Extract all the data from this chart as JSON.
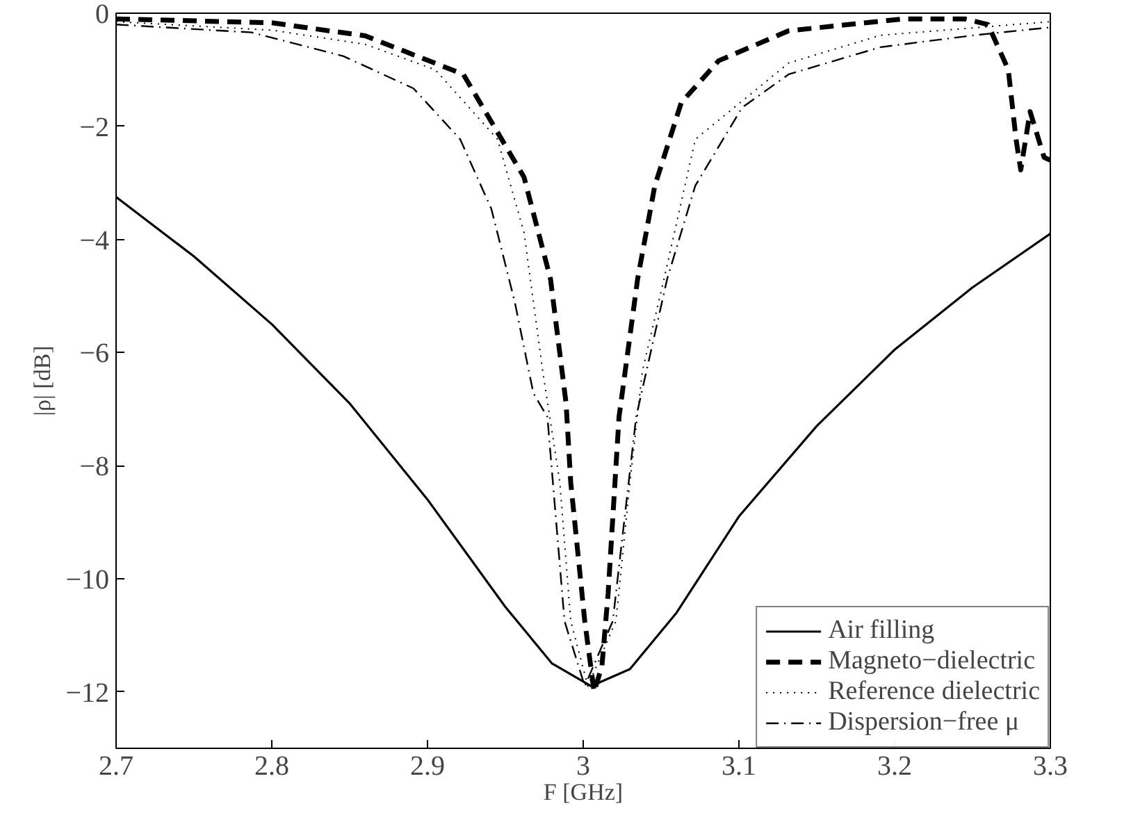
{
  "chart_data": {
    "type": "line",
    "xlabel": "F [GHz]",
    "ylabel": "|ρ| [dB]",
    "xlim": [
      2.7,
      3.3
    ],
    "ylim": [
      -13,
      0
    ],
    "xticks": [
      2.7,
      2.8,
      2.9,
      {
        "value": 3.0,
        "label": "3"
      },
      3.1,
      3.2,
      3.3
    ],
    "yticks": [
      0,
      {
        "value": -2,
        "label": "−2"
      },
      {
        "value": -4,
        "label": "−4"
      },
      {
        "value": -6,
        "label": "−6"
      },
      {
        "value": -8,
        "label": "−8"
      },
      {
        "value": -10,
        "label": "−10"
      },
      {
        "value": -12,
        "label": "−12"
      }
    ],
    "grid": false,
    "legend": "bottom right",
    "marker": "none",
    "series": [
      {
        "name": "Air filling",
        "color": "#000000",
        "line_style": "solid",
        "x": [
          2.7,
          2.75,
          2.8,
          2.85,
          2.9,
          2.95,
          2.98,
          3.005,
          3.03,
          3.06,
          3.1,
          3.15,
          3.2,
          3.25,
          3.3
        ],
        "values": [
          -3.25,
          -4.3,
          -5.5,
          -6.9,
          -8.6,
          -10.5,
          -11.5,
          -11.9,
          -11.6,
          -10.6,
          -8.9,
          -7.3,
          -5.95,
          -4.85,
          -3.9
        ]
      },
      {
        "name": "Magneto−dielectric",
        "color": "#000000",
        "line_style": "dashed",
        "x": [
          2.7,
          2.8,
          2.86,
          2.923,
          2.962,
          2.979,
          2.989,
          2.992,
          3.001,
          3.007,
          3.012,
          3.016,
          3.023,
          3.035,
          3.046,
          3.063,
          3.087,
          3.132,
          3.206,
          3.245,
          3.26,
          3.273,
          3.278,
          3.281,
          3.287,
          3.296,
          3.3
        ],
        "values": [
          -0.1,
          -0.17,
          -0.4,
          -1.08,
          -2.9,
          -4.7,
          -6.9,
          -8.3,
          -10.75,
          -12.0,
          -11.55,
          -10.26,
          -7.14,
          -4.69,
          -3.05,
          -1.58,
          -0.84,
          -0.31,
          -0.1,
          -0.1,
          -0.2,
          -1.0,
          -2.23,
          -2.77,
          -1.74,
          -2.55,
          -2.6
        ]
      },
      {
        "name": "Reference dielectric",
        "color": "#000000",
        "line_style": "dotted",
        "x": [
          2.7,
          2.8,
          2.86,
          2.905,
          2.945,
          2.962,
          2.974,
          2.985,
          2.992,
          3.003,
          3.021,
          3.03,
          3.038,
          3.052,
          3.072,
          3.132,
          3.191,
          3.3
        ],
        "values": [
          -0.15,
          -0.3,
          -0.55,
          -1.0,
          -2.23,
          -3.88,
          -6.33,
          -8.3,
          -10.75,
          -11.9,
          -10.75,
          -8.3,
          -6.33,
          -4.69,
          -2.23,
          -0.88,
          -0.39,
          -0.15
        ]
      },
      {
        "name": "Dispersion−free μ",
        "color": "#000000",
        "line_style": "dashdot",
        "x": [
          2.7,
          2.787,
          2.846,
          2.891,
          2.921,
          2.941,
          2.956,
          2.968,
          2.977,
          2.988,
          3.001,
          3.019,
          3.034,
          3.054,
          3.072,
          3.102,
          3.132,
          3.191,
          3.251,
          3.3
        ],
        "values": [
          -0.2,
          -0.34,
          -0.76,
          -1.33,
          -2.23,
          -3.46,
          -5.1,
          -6.72,
          -7.14,
          -10.75,
          -11.9,
          -10.75,
          -7.14,
          -4.69,
          -3.05,
          -1.67,
          -1.08,
          -0.6,
          -0.39,
          -0.25
        ]
      }
    ]
  }
}
